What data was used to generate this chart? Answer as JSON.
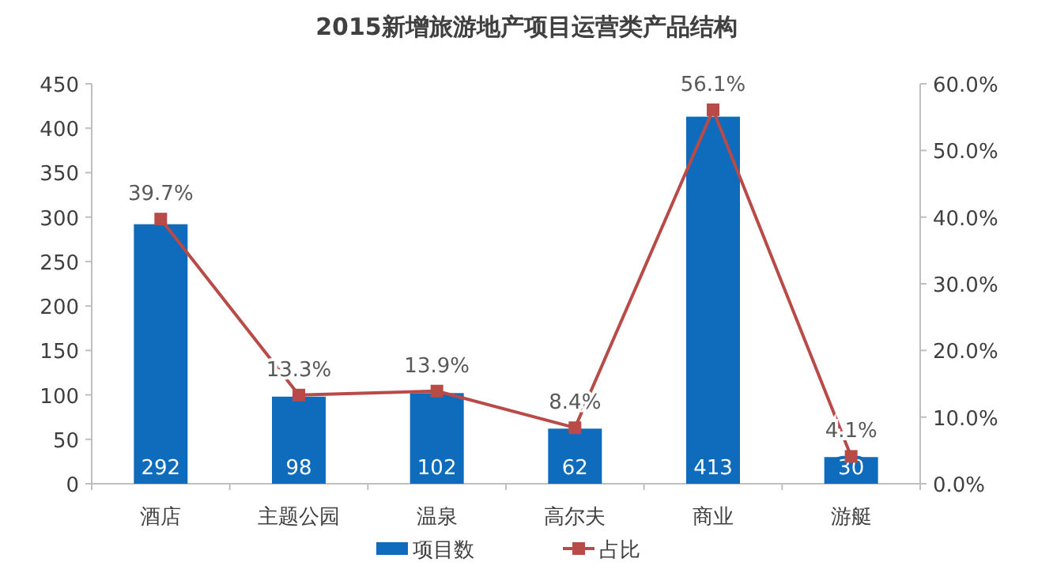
{
  "chart_data": {
    "type": "bar",
    "title": "2015新增旅游地产项目运营类产品结构",
    "categories": [
      "酒店",
      "主题公园",
      "温泉",
      "高尔夫",
      "商业",
      "游艇"
    ],
    "series": [
      {
        "name": "项目数",
        "color": "#0f6cbd",
        "values": [
          292,
          98,
          102,
          62,
          413,
          30
        ],
        "value_labels": [
          "292",
          "98",
          "102",
          "62",
          "413",
          "30"
        ]
      },
      {
        "name": "占比",
        "type": "line",
        "axis": "y2",
        "color": "#b84a48",
        "marker": "square",
        "values": [
          39.7,
          13.3,
          13.9,
          8.4,
          56.1,
          4.1
        ],
        "value_labels": [
          "39.7%",
          "13.3%",
          "13.9%",
          "8.4%",
          "56.1%",
          "4.1%"
        ]
      }
    ],
    "ylim": [
      0,
      450
    ],
    "yticks": [
      0,
      50,
      100,
      150,
      200,
      250,
      300,
      350,
      400,
      450
    ],
    "y2lim": [
      0,
      60
    ],
    "y2ticks": [
      {
        "value": 0,
        "label": "0.0%"
      },
      {
        "value": 10,
        "label": "10.0%"
      },
      {
        "value": 20,
        "label": "20.0%"
      },
      {
        "value": 30,
        "label": "30.0%"
      },
      {
        "value": 40,
        "label": "40.0%"
      },
      {
        "value": 50,
        "label": "50.0%"
      },
      {
        "value": 60,
        "label": "60.0%"
      }
    ],
    "grid": false,
    "legend": "bottom"
  }
}
